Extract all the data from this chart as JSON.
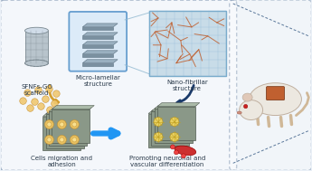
{
  "bg_color": "#eaf0f7",
  "title": "",
  "labels": {
    "scaffold": "SFNFs-GO\nscaffold",
    "micro": "Micro-lamellar\nstructure",
    "nano": "Nano-fibrillar\nstructure",
    "cells": "Cells migration and\nadhesion",
    "promoting": "Promoting neuronal and\nvascular differentiation"
  },
  "label_fontsize": 5.0,
  "arrow_color_gold": "#d4a030",
  "arrow_color_blue": "#2196F3",
  "arrow_color_dark": "#1a3a6a",
  "text_color": "#2a3a4a",
  "dot_border_color": "#4a6a90",
  "micro_box_edge": "#5090c8",
  "micro_box_fill": "#d8eaf8",
  "nano_box_fill": "#c8dce8",
  "nano_fiber": "#c06030",
  "scaffold_body": "#b8c4cc",
  "scaffold_top": "#d0dce8",
  "scaffold_grid": "#7a8890",
  "plate_face": "#9ab0c0",
  "plate_side": "#7a90a0",
  "plate_edge": "#5a7080",
  "block_face": "#8a9888",
  "block_edge": "#505a50",
  "cell_fill": "#e8c060",
  "cell_edge": "#c09030",
  "neuron_fill": "#e8d060",
  "neuron_edge": "#b09020",
  "neuron_branch": "#c0a020",
  "blood_fill": "#cc3030",
  "blood_edge": "#990000",
  "mouse_body": "#ece8e0",
  "mouse_ear": "#e0c8b8",
  "mouse_eye": "#cc2020",
  "mouse_implant_fill": "#c06030",
  "mouse_implant_edge": "#804020",
  "mouse_tail": "#d0b898",
  "mouse_outline": "#c0b0a0",
  "cone_line": "#90b8d0"
}
